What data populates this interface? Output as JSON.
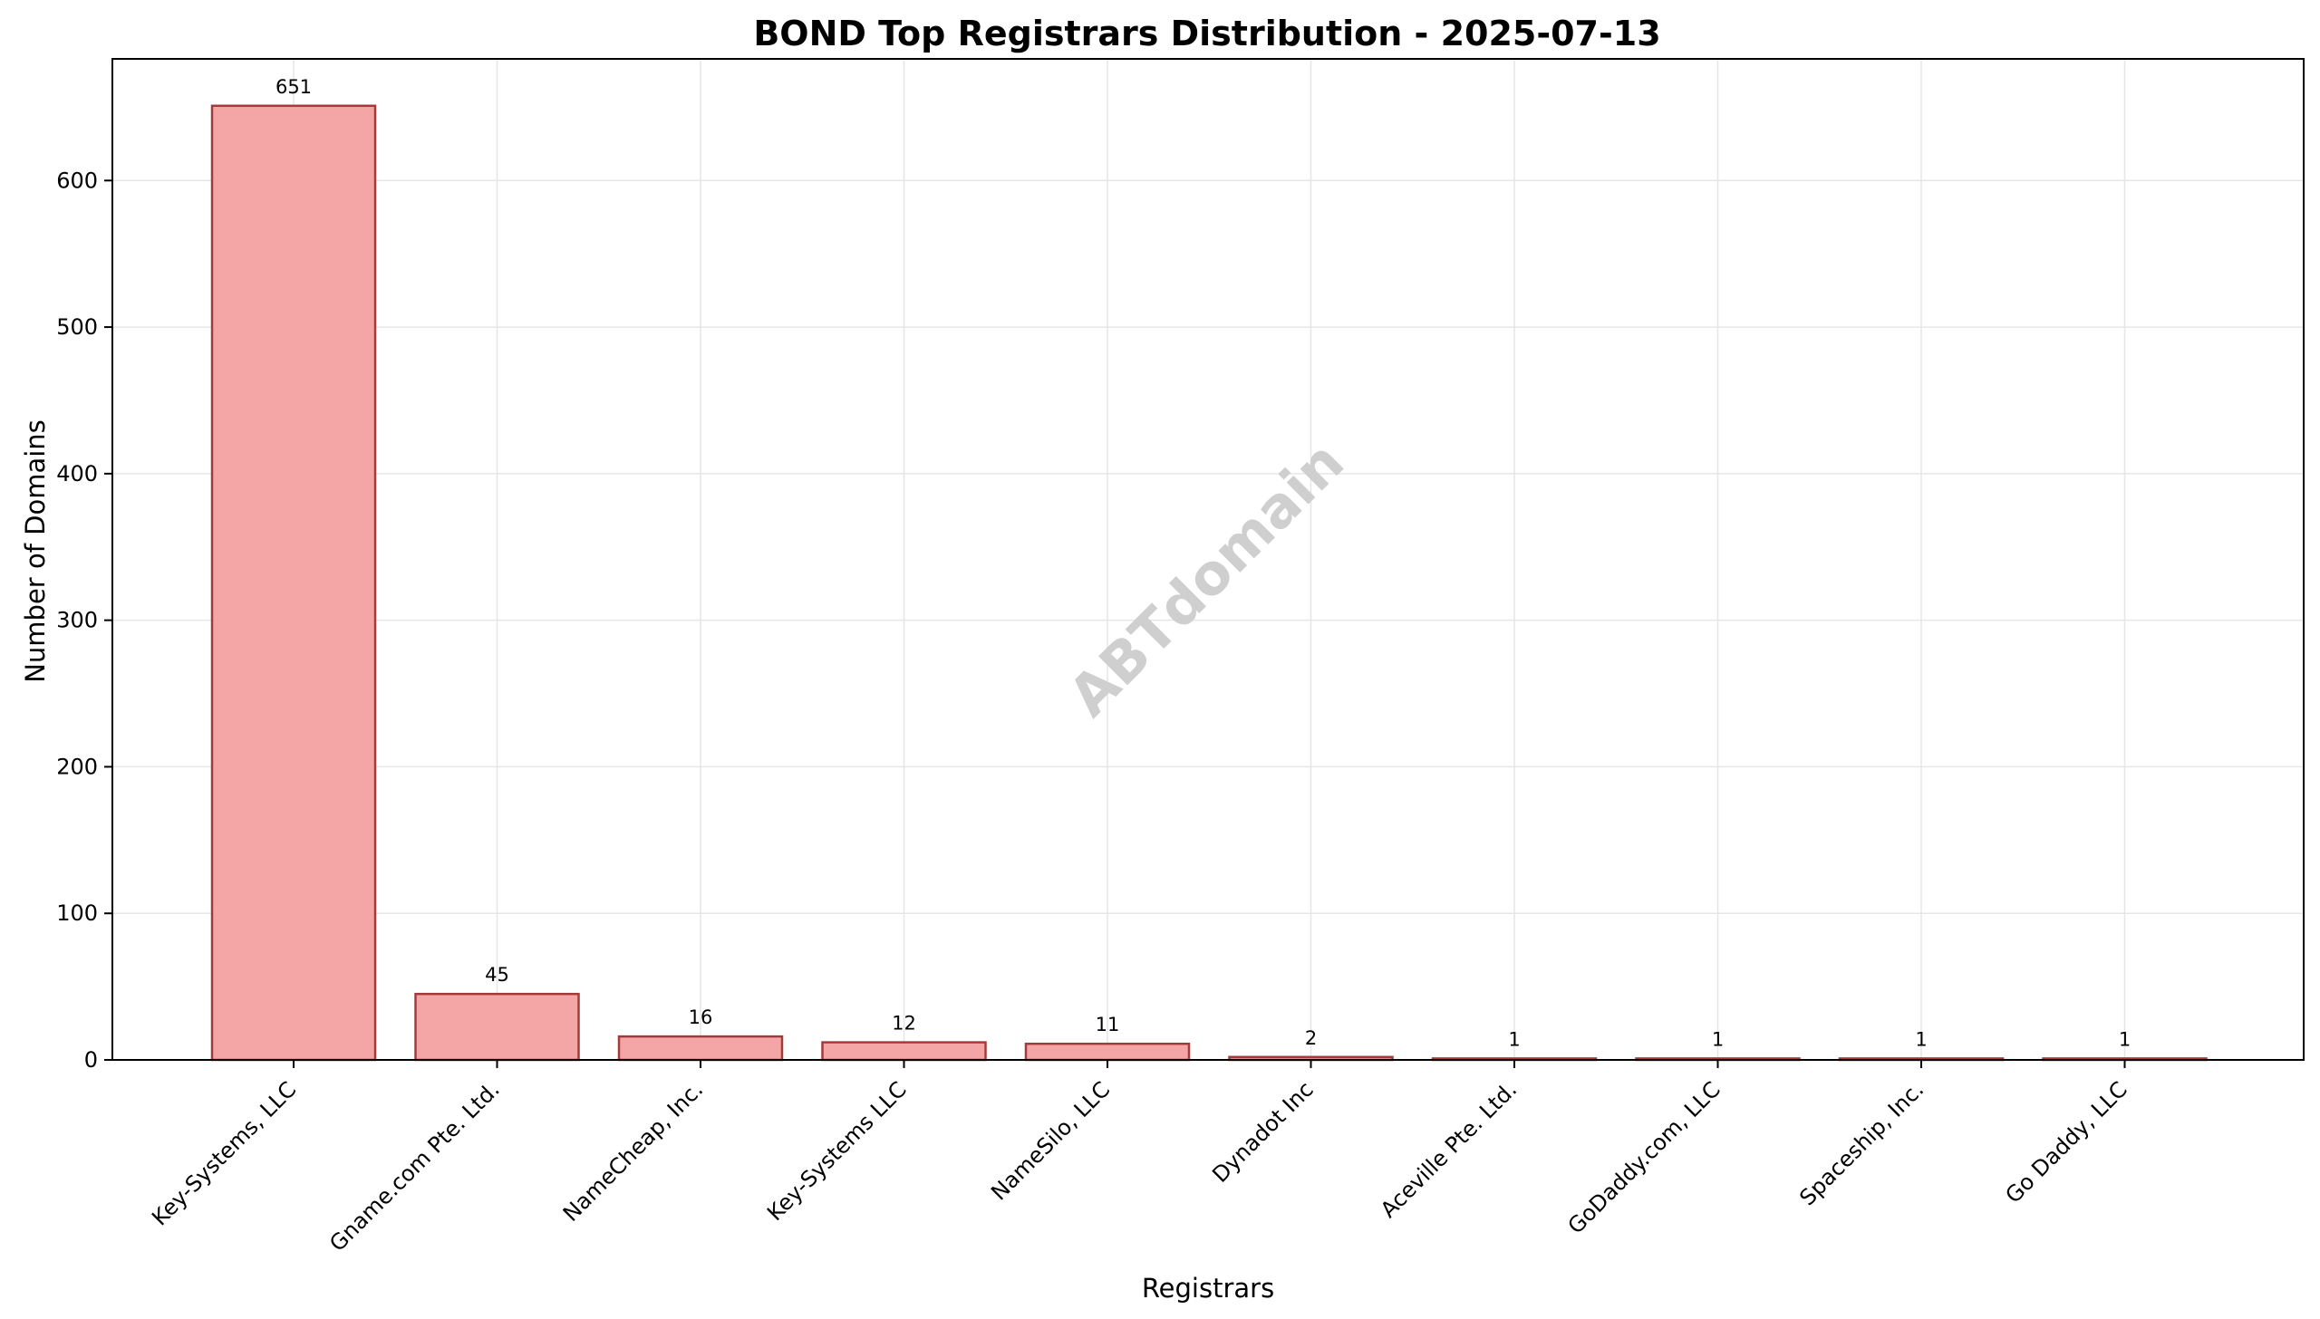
{
  "chart_data": {
    "type": "bar",
    "title": "BOND Top Registrars Distribution - 2025-07-13",
    "xlabel": "Registrars",
    "ylabel": "Number of Domains",
    "categories": [
      "Key-Systems, LLC",
      "Gname.com Pte. Ltd.",
      "NameCheap, Inc.",
      "Key-Systems LLC",
      "NameSilo, LLC",
      "Dynadot Inc",
      "Aceville Pte. Ltd.",
      "GoDaddy.com, LLC",
      "Spaceship, Inc.",
      "Go Daddy, LLC"
    ],
    "values": [
      651,
      45,
      16,
      12,
      11,
      2,
      1,
      1,
      1,
      1
    ],
    "ylim": [
      0,
      683
    ],
    "yticks": [
      0,
      100,
      200,
      300,
      400,
      500,
      600
    ],
    "grid": true,
    "bar_color": "#f4a6a6",
    "bar_edge_color": "#a33b3b",
    "watermark": "ABTdomain"
  }
}
